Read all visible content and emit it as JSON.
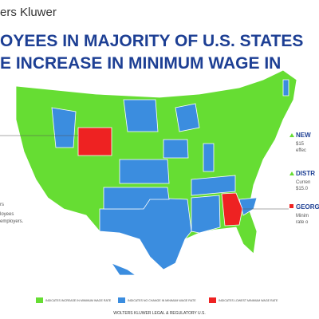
{
  "header": {
    "logo": "ers Kluwer",
    "title_lines": [
      "OYEES IN MAJORITY OF U.S. STATES",
      "E INCREASE IN MINIMUM WAGE IN"
    ]
  },
  "left_callout": {
    "lines": [
      "rs",
      "loyees",
      "employers."
    ]
  },
  "callouts": [
    {
      "title": "NEW",
      "lines": [
        "$15",
        "effec"
      ]
    },
    {
      "title": "DISTR",
      "lines": [
        "Curren",
        "$15.0"
      ]
    },
    {
      "title": "GEORG",
      "lines": [
        "Minim",
        "rate o"
      ]
    }
  ],
  "legend": [
    "INDICATES INCREASE IN MINIMUM WAGE RATE",
    "INDICATES NO CHANGE IN MINIMUM WAGE RATE",
    "INDICATES LOWEST MINIMUM WAGE RATE"
  ],
  "footer": "WOLTERS KLUWER LEGAL & REGULATORY U.S."
}
